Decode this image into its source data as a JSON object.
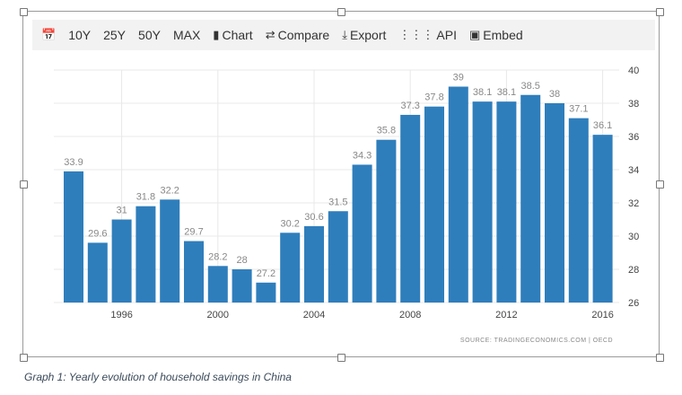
{
  "toolbar": {
    "items": [
      {
        "label": "",
        "icon": "calendar-icon"
      },
      {
        "label": "10Y"
      },
      {
        "label": "25Y"
      },
      {
        "label": "50Y"
      },
      {
        "label": "MAX"
      },
      {
        "label": "Chart",
        "icon": "bar-chart-icon"
      },
      {
        "label": "Compare",
        "icon": "shuffle-icon"
      },
      {
        "label": "Export",
        "icon": "download-icon"
      },
      {
        "label": "API",
        "icon": "grid-icon"
      },
      {
        "label": "Embed",
        "icon": "image-icon"
      }
    ]
  },
  "chart_data": {
    "type": "bar",
    "categories": [
      "1994",
      "1995",
      "1996",
      "1997",
      "1998",
      "1999",
      "2000",
      "2001",
      "2002",
      "2003",
      "2004",
      "2005",
      "2006",
      "2007",
      "2008",
      "2009",
      "2010",
      "2011",
      "2012",
      "2013",
      "2014",
      "2015",
      "2016"
    ],
    "values": [
      33.9,
      29.6,
      31,
      31.8,
      32.2,
      29.7,
      28.2,
      28,
      27.2,
      30.2,
      30.6,
      31.5,
      34.3,
      35.8,
      37.3,
      37.8,
      39,
      38.1,
      38.1,
      38.5,
      38,
      37.1,
      36.1
    ],
    "x_tick_labels": [
      "1996",
      "2000",
      "2004",
      "2008",
      "2012",
      "2016"
    ],
    "y_tick_labels": [
      "26",
      "28",
      "30",
      "32",
      "34",
      "36",
      "38",
      "40"
    ],
    "ylim": [
      26,
      40
    ],
    "y_axis_position": "right",
    "grid": true,
    "bar_color": "#2f7ebc",
    "source": "SOURCE: TRADINGECONOMICS.COM  |  OECD"
  },
  "caption": "Graph 1: Yearly evolution of household savings in China"
}
